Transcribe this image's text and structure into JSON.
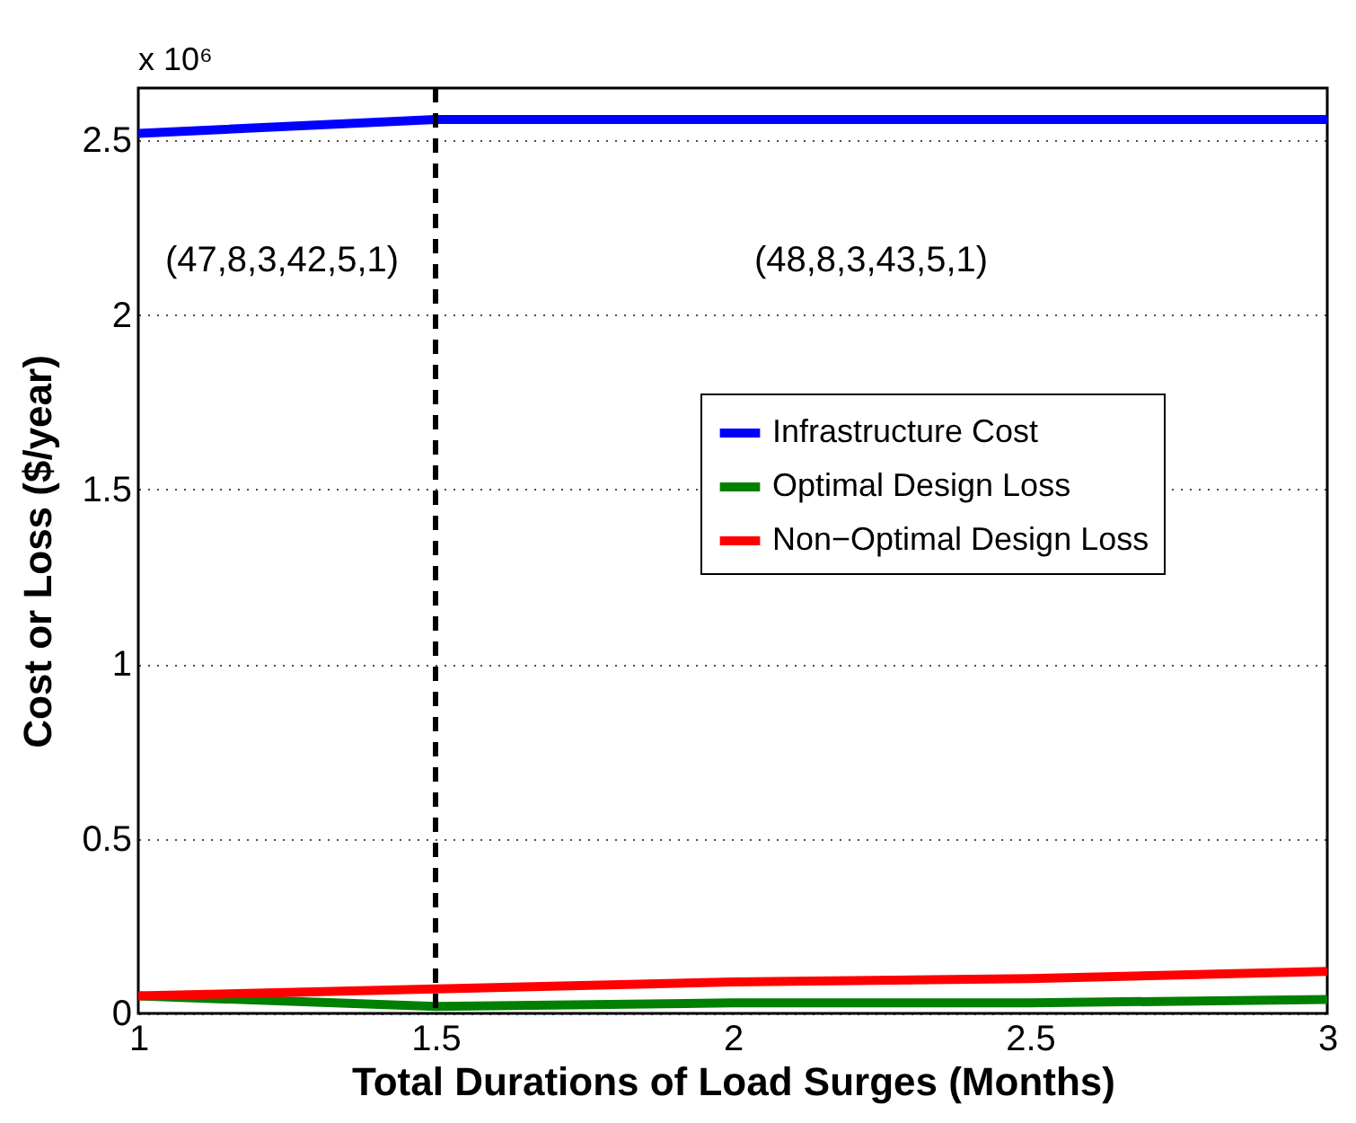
{
  "chart_data": {
    "type": "line",
    "xlabel": "Total Durations of Load Surges (Months)",
    "ylabel": "Cost or Loss ($/year)",
    "x": [
      1,
      1.5,
      2,
      2.5,
      3
    ],
    "series": [
      {
        "name": "Infrastructure Cost",
        "color": "#0000ff",
        "values": [
          2.52,
          2.56,
          2.56,
          2.56,
          2.56
        ]
      },
      {
        "name": "Optimal Design Loss",
        "color": "#008000",
        "values": [
          0.05,
          0.02,
          0.03,
          0.03,
          0.04
        ]
      },
      {
        "name": "Non−Optimal Design Loss",
        "color": "#ff0000",
        "values": [
          0.05,
          0.07,
          0.09,
          0.1,
          0.12
        ]
      }
    ],
    "xlim": [
      1,
      3
    ],
    "xticks": [
      1,
      1.5,
      2,
      2.5,
      3
    ],
    "ylim": [
      0,
      2.65
    ],
    "yticks": [
      0,
      0.5,
      1,
      1.5,
      2,
      2.5
    ],
    "grid": "y",
    "legend": "right",
    "line_style": "solid",
    "ref_lines": [
      {
        "axis": "x",
        "value": 1.5,
        "color": "#000000",
        "line_style": "dashed"
      }
    ],
    "annotations": [
      "x 10⁶",
      "(47,8,3,42,5,1)",
      "(48,8,3,43,5,1)"
    ]
  }
}
